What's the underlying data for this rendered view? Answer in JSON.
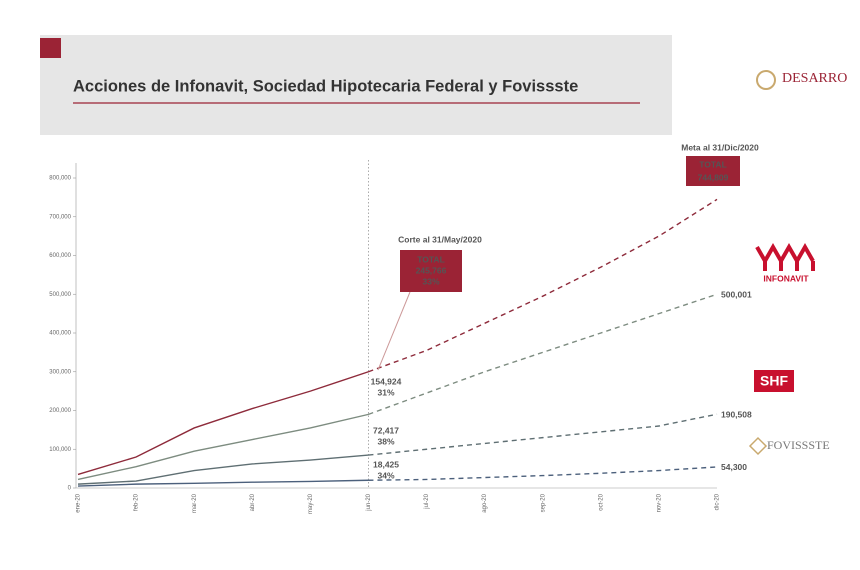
{
  "header": {
    "title": "Acciones de Infonavit, Sociedad Hipotecaria Federal y Fovissste",
    "brand": "DESARRO"
  },
  "logos": [
    "INFONAVIT",
    "SHF",
    "FOVISSSTE"
  ],
  "chart_data": {
    "type": "line",
    "categories": [
      "ene-20",
      "feb-20",
      "mar-20",
      "abr-20",
      "may-20",
      "jun-20",
      "jul-20",
      "ago-20",
      "sep-20",
      "oct-20",
      "nov-20",
      "dic-20"
    ],
    "projection_from": "jun-20",
    "ylim": [
      0,
      800000
    ],
    "yticks": [
      {
        "value": 0,
        "label": "0"
      },
      {
        "value": 100000,
        "label": "100,000"
      },
      {
        "value": 200000,
        "label": "200,000"
      },
      {
        "value": 300000,
        "label": "300,000"
      },
      {
        "value": 400000,
        "label": "400,000"
      },
      {
        "value": 500000,
        "label": "500,000"
      },
      {
        "value": 600000,
        "label": "600,000"
      },
      {
        "value": 700000,
        "label": "700,000"
      },
      {
        "value": 800000,
        "label": "800,000"
      }
    ],
    "series": [
      {
        "color": "#8e2b3b",
        "values": [
          35000,
          80000,
          155000,
          205000,
          250000,
          300000,
          355000,
          425000,
          495000,
          570000,
          650000,
          744809
        ],
        "value_labels": [
          null,
          null,
          null,
          null,
          null,
          null,
          null,
          null,
          null,
          null,
          null,
          "744,809"
        ]
      },
      {
        "color": "#7d8c80",
        "values": [
          22000,
          55000,
          95000,
          125000,
          155000,
          190000,
          245000,
          300000,
          350000,
          400000,
          450000,
          500001
        ],
        "value_labels": [
          null,
          null,
          null,
          null,
          null,
          null,
          null,
          null,
          null,
          null,
          null,
          "500,001"
        ]
      },
      {
        "color": "#5f6f73",
        "values": [
          10000,
          18000,
          45000,
          62000,
          72000,
          85000,
          100000,
          115000,
          130000,
          145000,
          160000,
          190508
        ],
        "value_labels": [
          null,
          null,
          null,
          null,
          null,
          null,
          null,
          null,
          null,
          null,
          null,
          "190,508"
        ]
      },
      {
        "color": "#4c607c",
        "values": [
          5000,
          10000,
          12000,
          15000,
          17000,
          20000,
          22000,
          27000,
          32000,
          38000,
          45000,
          54300
        ],
        "value_labels": [
          null,
          null,
          null,
          null,
          null,
          null,
          null,
          null,
          null,
          null,
          null,
          "54,300"
        ]
      }
    ],
    "annotations": {
      "meta": {
        "title": "Meta al 31/Dic/2020",
        "box": "TOTAL"
      },
      "corte": {
        "title": "Corte al 31/May/2020",
        "box": "TOTAL",
        "value": "245,766",
        "pct": "33%"
      },
      "infonavit": {
        "value": "154,924",
        "pct": "31%"
      },
      "shf": {
        "value": "72,417",
        "pct": "38%"
      },
      "fovissste": {
        "value": "18,425",
        "pct": "34%"
      }
    }
  }
}
